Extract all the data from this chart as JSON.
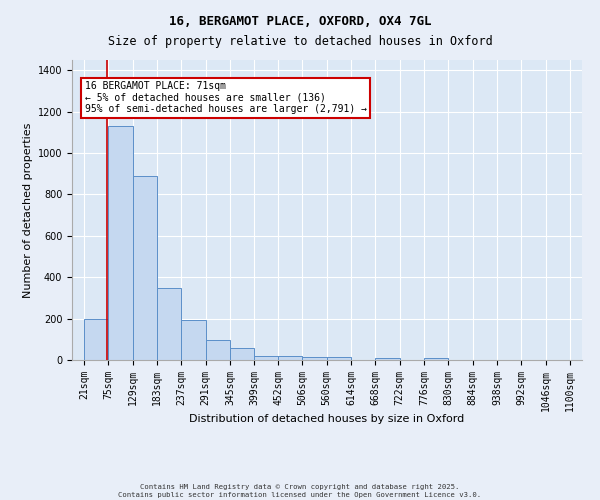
{
  "title_line1": "16, BERGAMOT PLACE, OXFORD, OX4 7GL",
  "title_line2": "Size of property relative to detached houses in Oxford",
  "xlabel": "Distribution of detached houses by size in Oxford",
  "ylabel": "Number of detached properties",
  "bin_labels": [
    "21sqm",
    "75sqm",
    "129sqm",
    "183sqm",
    "237sqm",
    "291sqm",
    "345sqm",
    "399sqm",
    "452sqm",
    "506sqm",
    "560sqm",
    "614sqm",
    "668sqm",
    "722sqm",
    "776sqm",
    "830sqm",
    "884sqm",
    "938sqm",
    "992sqm",
    "1046sqm",
    "1100sqm"
  ],
  "bin_edges": [
    21,
    75,
    129,
    183,
    237,
    291,
    345,
    399,
    452,
    506,
    560,
    614,
    668,
    722,
    776,
    830,
    884,
    938,
    992,
    1046,
    1100
  ],
  "bar_heights": [
    197,
    1130,
    890,
    350,
    195,
    95,
    60,
    20,
    20,
    15,
    15,
    0,
    10,
    0,
    10,
    0,
    0,
    0,
    0,
    0
  ],
  "bar_color": "#c5d8f0",
  "bar_edge_color": "#5b8fc9",
  "vline_x": 71,
  "vline_color": "#cc0000",
  "ylim": [
    0,
    1450
  ],
  "yticks": [
    0,
    200,
    400,
    600,
    800,
    1000,
    1200,
    1400
  ],
  "annotation_text": "16 BERGAMOT PLACE: 71sqm\n← 5% of detached houses are smaller (136)\n95% of semi-detached houses are larger (2,791) →",
  "annotation_box_facecolor": "#ffffff",
  "annotation_box_edgecolor": "#cc0000",
  "bg_color": "#dce8f5",
  "fig_bg_color": "#e8eef8",
  "footer_line1": "Contains HM Land Registry data © Crown copyright and database right 2025.",
  "footer_line2": "Contains public sector information licensed under the Open Government Licence v3.0.",
  "title_fontsize": 9,
  "ylabel_fontsize": 8,
  "xlabel_fontsize": 8,
  "tick_fontsize": 7,
  "annot_fontsize": 7
}
